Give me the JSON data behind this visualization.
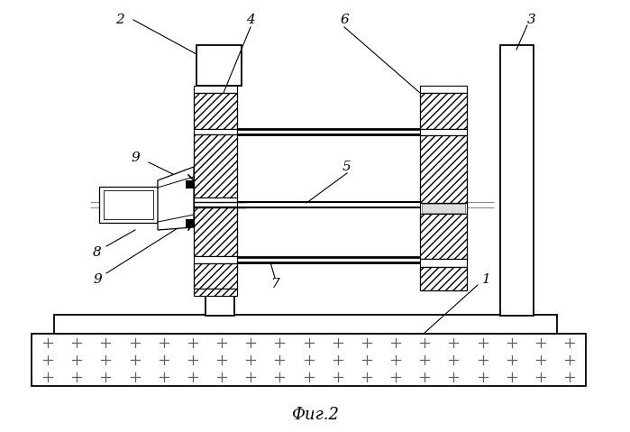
{
  "bg_color": "#ffffff",
  "caption": "Фиг.2",
  "figsize": [
    6.99,
    4.79
  ],
  "dpi": 100
}
